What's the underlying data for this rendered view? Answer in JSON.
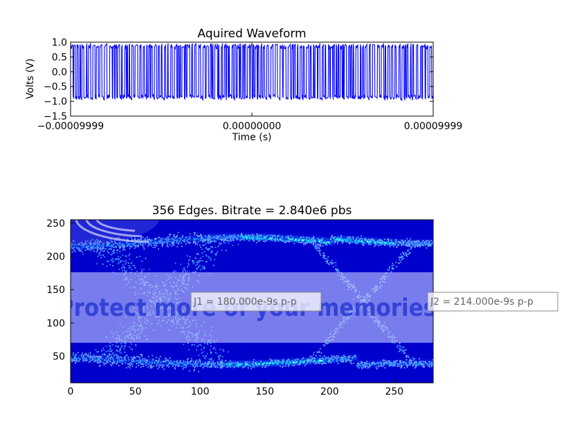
{
  "chart_data": [
    {
      "type": "line",
      "title": "Aquired Waveform",
      "xlabel": "Time (s)",
      "ylabel": "Volts (V)",
      "xlim": [
        -9.999e-05,
        9.999e-05
      ],
      "ylim": [
        -1.5,
        1.0
      ],
      "xticks": [
        "−0.00009999",
        "0.00000000",
        "0.00009999"
      ],
      "yticks": [
        "1.0",
        "0.5",
        "0.0",
        "−0.5",
        "−1.0",
        "−1.5"
      ],
      "series_color": "#0000ff",
      "signal": {
        "high": 0.85,
        "low": -0.85,
        "edges": 356,
        "bitrate": "2.840e6"
      }
    },
    {
      "type": "heatmap",
      "title": "356 Edges. Bitrate = 2.840e6 pbs",
      "xlim": [
        0,
        280
      ],
      "ylim": [
        10,
        255
      ],
      "xticks": [
        "0",
        "50",
        "100",
        "150",
        "200",
        "250"
      ],
      "yticks": [
        "250",
        "200",
        "150",
        "100",
        "50"
      ],
      "background_color": "#0000cc",
      "annotations": [
        {
          "label": "J1 = 180.000e-9s p-p",
          "x": 94,
          "y": 137
        },
        {
          "label": "J2 = 214.000e-9s p-p",
          "x": 278,
          "y": 137
        }
      ]
    }
  ],
  "watermark": {
    "text": "Protect more of your memories for less!"
  }
}
